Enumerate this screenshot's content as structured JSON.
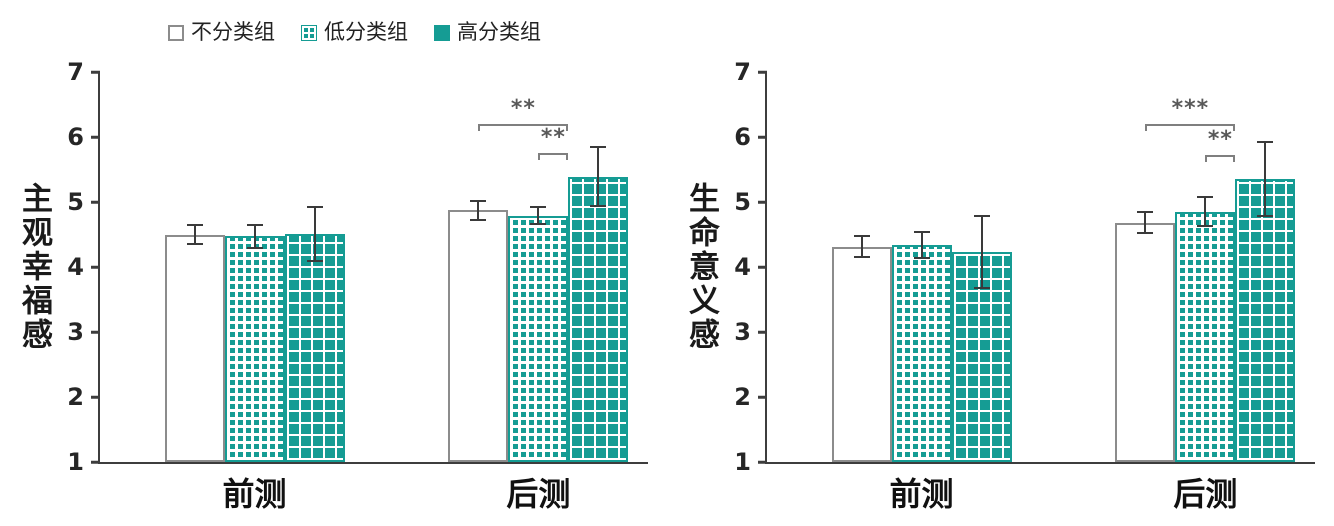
{
  "colors": {
    "teal": "#159C94",
    "bar_outline_gray": "#8C8C8C",
    "axis": "#3D3D3D",
    "significance": "#595959"
  },
  "legend": {
    "items": [
      {
        "label": "不分类组",
        "style": "plain-white"
      },
      {
        "label": "低分类组",
        "style": "small-checker"
      },
      {
        "label": "高分类组",
        "style": "large-checker"
      }
    ]
  },
  "chart_data": [
    {
      "type": "bar",
      "title": "",
      "ylabel": "主观幸福感",
      "xlabel": "",
      "categories": [
        "前测",
        "后测"
      ],
      "ylim": [
        1,
        7
      ],
      "yticks": [
        1,
        2,
        3,
        4,
        5,
        6,
        7
      ],
      "grid": false,
      "legend_position": "top",
      "series": [
        {
          "name": "不分类组",
          "values": [
            4.5,
            4.87
          ],
          "errors": [
            0.15,
            0.15
          ]
        },
        {
          "name": "低分类组",
          "values": [
            4.47,
            4.79
          ],
          "errors": [
            0.17,
            0.13
          ]
        },
        {
          "name": "高分类组",
          "values": [
            4.51,
            5.39
          ],
          "errors": [
            0.42,
            0.45
          ]
        }
      ],
      "annotations": [
        {
          "label": "**",
          "category": 1,
          "from_series": 0,
          "to_series": 2,
          "y": 6.2
        },
        {
          "label": "**",
          "category": 1,
          "from_series": 1,
          "to_series": 2,
          "y": 5.75
        }
      ]
    },
    {
      "type": "bar",
      "title": "",
      "ylabel": "生命意义感",
      "xlabel": "",
      "categories": [
        "前测",
        "后测"
      ],
      "ylim": [
        1,
        7
      ],
      "yticks": [
        1,
        2,
        3,
        4,
        5,
        6,
        7
      ],
      "grid": false,
      "legend_position": "none",
      "series": [
        {
          "name": "不分类组",
          "values": [
            4.31,
            4.68
          ],
          "errors": [
            0.16,
            0.16
          ]
        },
        {
          "name": "低分类组",
          "values": [
            4.34,
            4.85
          ],
          "errors": [
            0.2,
            0.22
          ]
        },
        {
          "name": "高分类组",
          "values": [
            4.23,
            5.35
          ],
          "errors": [
            0.55,
            0.57
          ]
        }
      ],
      "annotations": [
        {
          "label": "***",
          "category": 1,
          "from_series": 0,
          "to_series": 2,
          "y": 6.2
        },
        {
          "label": "**",
          "category": 1,
          "from_series": 1,
          "to_series": 2,
          "y": 5.72
        }
      ]
    }
  ]
}
